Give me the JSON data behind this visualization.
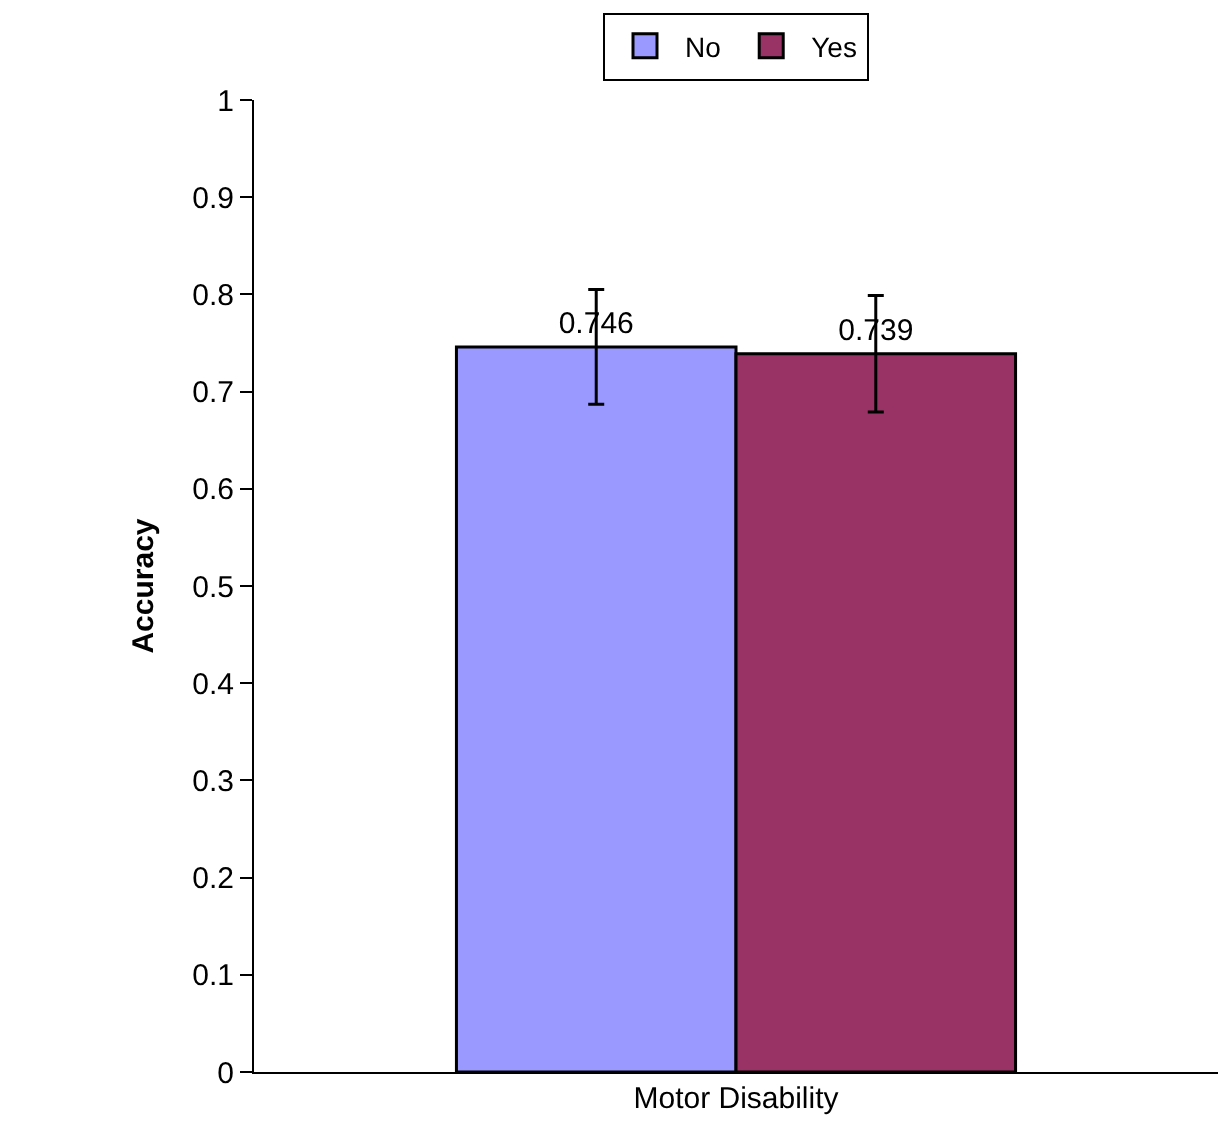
{
  "chart_data": {
    "type": "bar",
    "xlabel": "Motor Disability",
    "ylabel": "Accuracy",
    "categories": [
      null
    ],
    "series": [
      {
        "name": "No",
        "color": "#9999ff",
        "values": [
          0.746
        ],
        "errors": [
          0.059
        ]
      },
      {
        "name": "Yes",
        "color": "#993366",
        "values": [
          0.739
        ],
        "errors": [
          0.06
        ]
      }
    ],
    "ylim": [
      0,
      1
    ],
    "yticks": [
      0,
      0.1,
      0.2,
      0.3,
      0.4,
      0.5,
      0.6,
      0.7,
      0.8,
      0.9,
      1
    ],
    "data_labels": true,
    "legend": "top"
  }
}
